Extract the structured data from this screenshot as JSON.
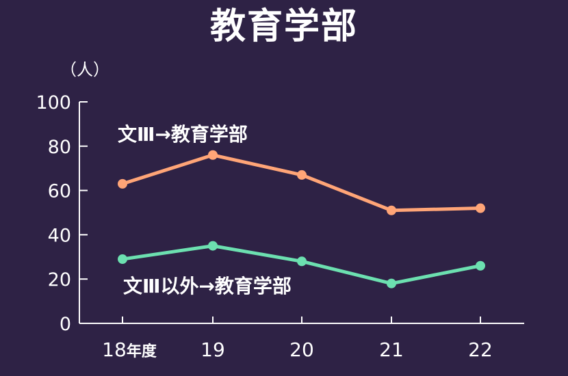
{
  "title": "教育学部",
  "chart_data": {
    "type": "line",
    "title": "教育学部",
    "ylabel": "（人）",
    "xlabel": "",
    "categories": [
      "18年度",
      "19",
      "20",
      "21",
      "22"
    ],
    "ylim": [
      0,
      100
    ],
    "yticks": [
      0,
      20,
      40,
      60,
      80,
      100
    ],
    "grid": false,
    "series": [
      {
        "name": "文Ⅲ→教育学部",
        "color": "#ffa577",
        "values": [
          63,
          76,
          67,
          51,
          52
        ]
      },
      {
        "name": "文Ⅲ以外→教育学部",
        "color": "#6ce0b0",
        "values": [
          29,
          35,
          28,
          18,
          26
        ]
      }
    ]
  }
}
